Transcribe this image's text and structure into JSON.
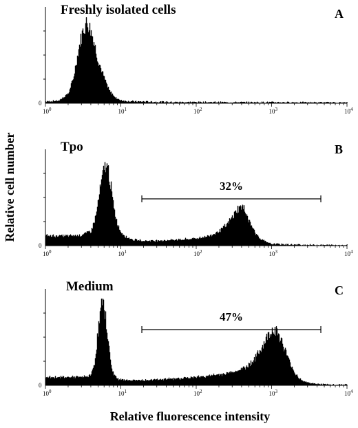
{
  "chart_data": [
    {
      "panel_letter": "A",
      "type": "area",
      "title": "Freshly isolated cells",
      "x_scale": "log",
      "xlim": [
        1,
        10000
      ],
      "x_tick_labels": [
        "10^0",
        "10^1",
        "10^2",
        "10^3",
        "10^4"
      ],
      "y_zero_label": "0",
      "gate": null,
      "series": [
        {
          "x": [
            1.0,
            1.5,
            2.0,
            2.3,
            2.6,
            2.9,
            3.2,
            3.5,
            3.8,
            4.2,
            4.6,
            5.0,
            5.6,
            6.3,
            7.0,
            8.0,
            9.0,
            10,
            12,
            15,
            20,
            30,
            50,
            100,
            300,
            1000,
            3000,
            8000
          ],
          "y": [
            0.02,
            0.03,
            0.12,
            0.28,
            0.55,
            0.78,
            0.92,
            1.0,
            0.95,
            0.82,
            0.66,
            0.52,
            0.38,
            0.25,
            0.15,
            0.09,
            0.05,
            0.035,
            0.025,
            0.02,
            0.018,
            0.015,
            0.012,
            0.012,
            0.01,
            0.01,
            0.008,
            0.005
          ]
        }
      ]
    },
    {
      "panel_letter": "B",
      "type": "area",
      "title": "Tpo",
      "x_scale": "log",
      "xlim": [
        1,
        10000
      ],
      "x_tick_labels": [
        "10^0",
        "10^1",
        "10^2",
        "10^3",
        "10^4"
      ],
      "y_zero_label": "0",
      "gate": {
        "label": "32%",
        "x_start": 19,
        "x_end": 4500
      },
      "series": [
        {
          "x": [
            1.0,
            2.0,
            3.0,
            4.0,
            4.6,
            5.2,
            5.8,
            6.3,
            6.8,
            7.4,
            8.0,
            9.0,
            10,
            12,
            15,
            20,
            30,
            50,
            80,
            120,
            160,
            200,
            250,
            300,
            350,
            400,
            450,
            500,
            600,
            700,
            900,
            1000,
            2000,
            5000,
            8000
          ],
          "y": [
            0.12,
            0.12,
            0.13,
            0.18,
            0.35,
            0.65,
            0.9,
            1.0,
            0.92,
            0.7,
            0.45,
            0.26,
            0.16,
            0.1,
            0.07,
            0.06,
            0.06,
            0.07,
            0.08,
            0.1,
            0.13,
            0.18,
            0.25,
            0.35,
            0.45,
            0.48,
            0.42,
            0.3,
            0.16,
            0.08,
            0.03,
            0.02,
            0.01,
            0.005,
            0.005
          ]
        }
      ]
    },
    {
      "panel_letter": "C",
      "type": "area",
      "title": "Medium",
      "x_scale": "log",
      "xlim": [
        1,
        10000
      ],
      "x_tick_labels": [
        "10^0",
        "10^1",
        "10^2",
        "10^3",
        "10^4"
      ],
      "y_zero_label": "0",
      "gate": {
        "label": "47%",
        "x_start": 19,
        "x_end": 4500
      },
      "series": [
        {
          "x": [
            1.0,
            2.0,
            3.0,
            4.0,
            4.5,
            5.0,
            5.5,
            6.0,
            6.5,
            7.0,
            7.5,
            8.0,
            9.0,
            10,
            12,
            15,
            20,
            30,
            50,
            100,
            200,
            300,
            450,
            600,
            750,
            900,
            1050,
            1200,
            1400,
            1700,
            2000,
            2500,
            3500,
            6000,
            8000
          ],
          "y": [
            0.1,
            0.1,
            0.1,
            0.12,
            0.3,
            0.7,
            1.0,
            0.95,
            0.7,
            0.4,
            0.22,
            0.13,
            0.08,
            0.07,
            0.06,
            0.06,
            0.06,
            0.07,
            0.08,
            0.1,
            0.13,
            0.16,
            0.22,
            0.33,
            0.48,
            0.62,
            0.7,
            0.65,
            0.5,
            0.3,
            0.15,
            0.06,
            0.02,
            0.005,
            0.005
          ]
        }
      ]
    }
  ],
  "ylabel": "Relative cell number",
  "xlabel": "Relative fluorescence intensity"
}
